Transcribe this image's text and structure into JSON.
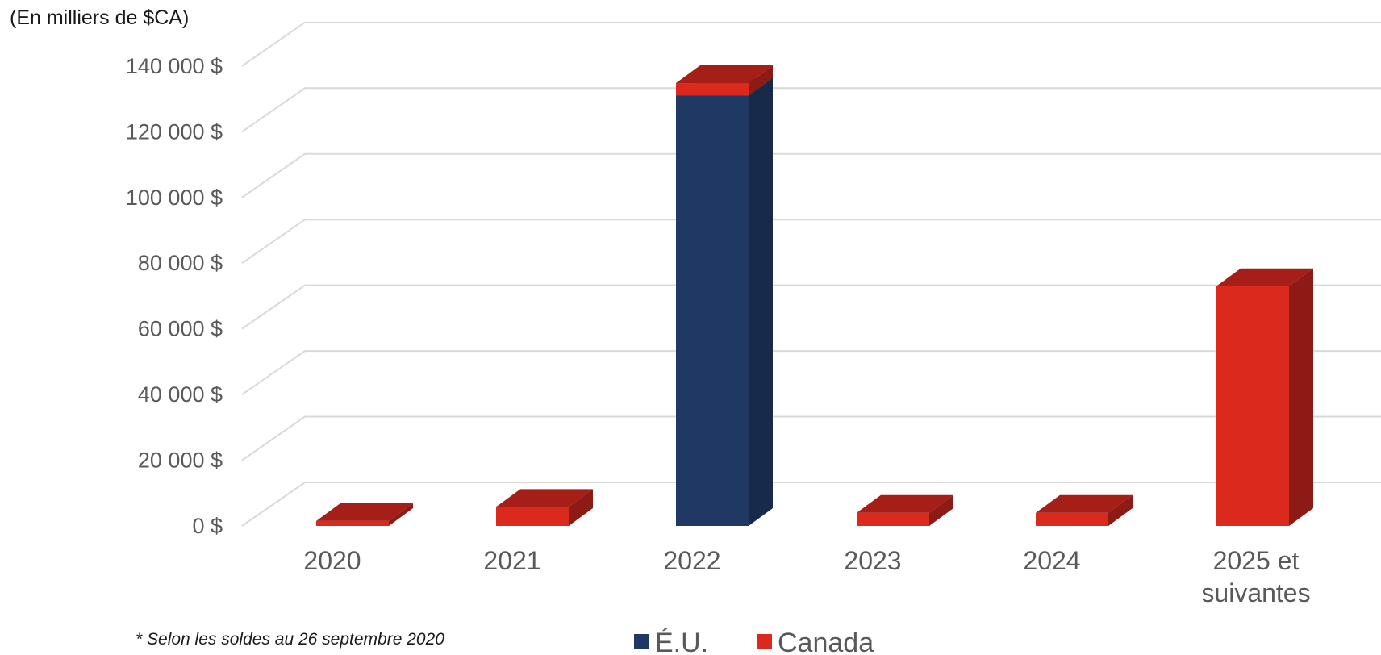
{
  "chart_data": {
    "type": "bar",
    "stacked": true,
    "three_d": true,
    "unit_label": "(En milliers de $CA)",
    "categories": [
      "2020",
      "2021",
      "2022",
      "2023",
      "2024",
      "2025 et suivantes"
    ],
    "series": [
      {
        "name": "É.U.",
        "color": "#203864",
        "side_color": "#172a4a",
        "top_color": "#1a2e52",
        "values": [
          0,
          0,
          131000,
          0,
          0,
          0
        ]
      },
      {
        "name": "Canada",
        "color": "#dc291e",
        "side_color": "#8e1a16",
        "top_color": "#a51f18",
        "values": [
          1500,
          5800,
          3800,
          4000,
          4000,
          73000
        ]
      }
    ],
    "ylim": [
      0,
      140000
    ],
    "yticks": [
      0,
      20000,
      40000,
      60000,
      80000,
      100000,
      120000,
      140000
    ],
    "ytick_labels": [
      "0 $",
      "20 000 $",
      "40 000 $",
      "60 000 $",
      "80 000 $",
      "100 000 $",
      "120 000 $",
      "140 000 $"
    ],
    "grid": true,
    "legend_position": "bottom"
  },
  "footnote": "* Selon les soldes au 26 septembre 2020"
}
